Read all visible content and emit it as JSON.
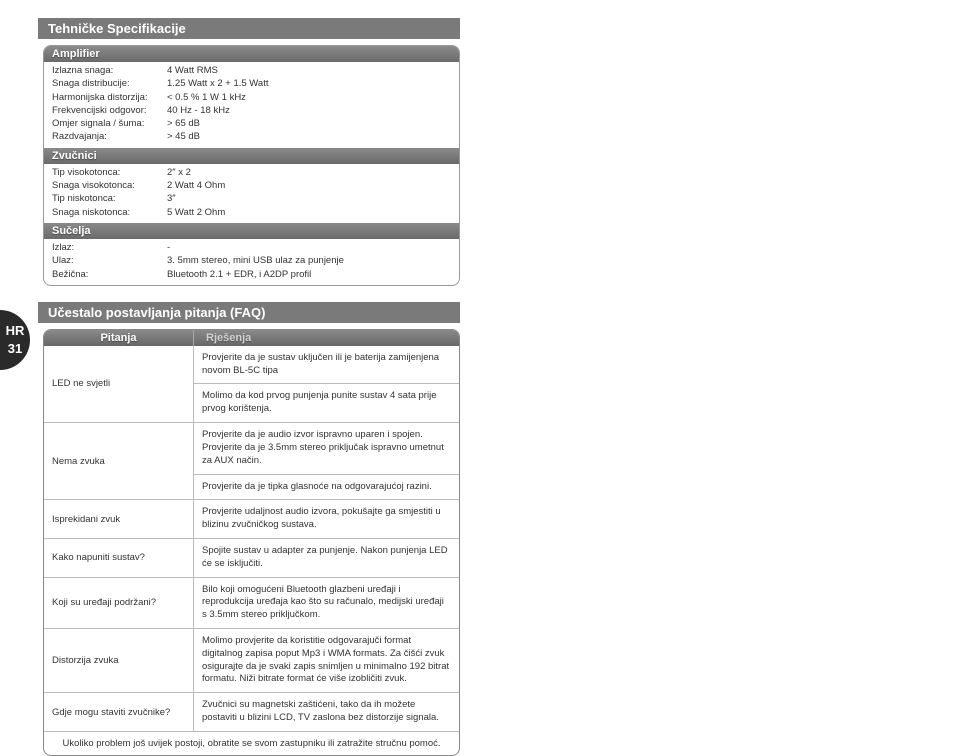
{
  "badge": {
    "lang": "HR",
    "page": "31"
  },
  "specs": {
    "title": "Tehničke Specifikacije",
    "groups": [
      {
        "header": "Amplifier",
        "rows": [
          {
            "label": "Izlazna snaga:",
            "value": "4 Watt RMS"
          },
          {
            "label": "Snaga distribucije:",
            "value": "1.25 Watt x 2 + 1.5 Watt"
          },
          {
            "label": "Harmonijska distorzija:",
            "value": "< 0.5 % 1 W 1 kHz"
          },
          {
            "label": "Frekvencijski odgovor:",
            "value": "40 Hz - 18 kHz"
          },
          {
            "label": "Omjer signala / šuma:",
            "value": "> 65 dB"
          },
          {
            "label": "Razdvajanja:",
            "value": "> 45 dB"
          }
        ]
      },
      {
        "header": "Zvučnici",
        "rows": [
          {
            "label": "Tip visokotonca:",
            "value": "2″ x 2"
          },
          {
            "label": "Snaga visokotonca:",
            "value": "2 Watt   4 Ohm"
          },
          {
            "label": "Tip niskotonca:",
            "value": "3″"
          },
          {
            "label": "Snaga niskotonca:",
            "value": "5 Watt   2 Ohm"
          }
        ]
      },
      {
        "header": "Sučelja",
        "rows": [
          {
            "label": "Izlaz:",
            "value": "-"
          },
          {
            "label": "Ulaz:",
            "value": "3. 5mm stereo, mini USB ulaz za punjenje"
          },
          {
            "label": "Bežična:",
            "value": "Bluetooth 2.1 + EDR, i A2DP profil"
          }
        ]
      }
    ]
  },
  "faq": {
    "title": "Učestalo postavljanja pitanja (FAQ)",
    "header_q": "Pitanja",
    "header_a": "Rješenja",
    "rows": [
      {
        "q": "LED ne svjetli",
        "a": [
          "Provjerite da je sustav uključen ili je baterija zamijenjena novom BL-5C tipa",
          "Molimo da kod prvog punjenja punite sustav 4 sata prije prvog korištenja."
        ]
      },
      {
        "q": "Nema zvuka",
        "a": [
          "Provjerite da je audio izvor ispravno uparen i spojen. Provjerite da je 3.5mm stereo priključak ispravno umetnut za AUX način.",
          "Provjerite da je tipka glasnoće na odgovarajućoj razini."
        ]
      },
      {
        "q": "Isprekidani zvuk",
        "a": [
          "Provjerite udaljnost audio izvora, pokušajte ga smjestiti u blizinu zvučničkog sustava."
        ]
      },
      {
        "q": "Kako napuniti sustav?",
        "a": [
          "Spojite sustav u adapter za punjenje. Nakon punjenja LED će se isključiti."
        ]
      },
      {
        "q": "Koji su uređaji podržani?",
        "a": [
          "Bilo koji omogućeni Bluetooth glazbeni uređaji i reprodukcija uređaja kao što su računalo, medijski uređaji s 3.5mm stereo priključkom."
        ]
      },
      {
        "q": "Distorzija zvuka",
        "a": [
          "Molimo provjerite da koristitie odgovarajuči format digitalnog zapisa poput Mp3 i WMA formats. Za čišći zvuk osigurajte da je svaki zapis snimljen u minimalno 192 bitrat formatu. Niži bitrate format će više izobličiti zvuk."
        ]
      },
      {
        "q": "Gdje mogu staviti zvučnike?",
        "a": [
          "Zvučnici su magnetski zaštićeni, tako da ih možete postaviti u blizini LCD, TV zaslona bez distorzije signala."
        ]
      }
    ],
    "footer": "Ukoliko problem još uvijek postoji, obratite se svom zastupniku ili zatražite stručnu pomoć."
  }
}
